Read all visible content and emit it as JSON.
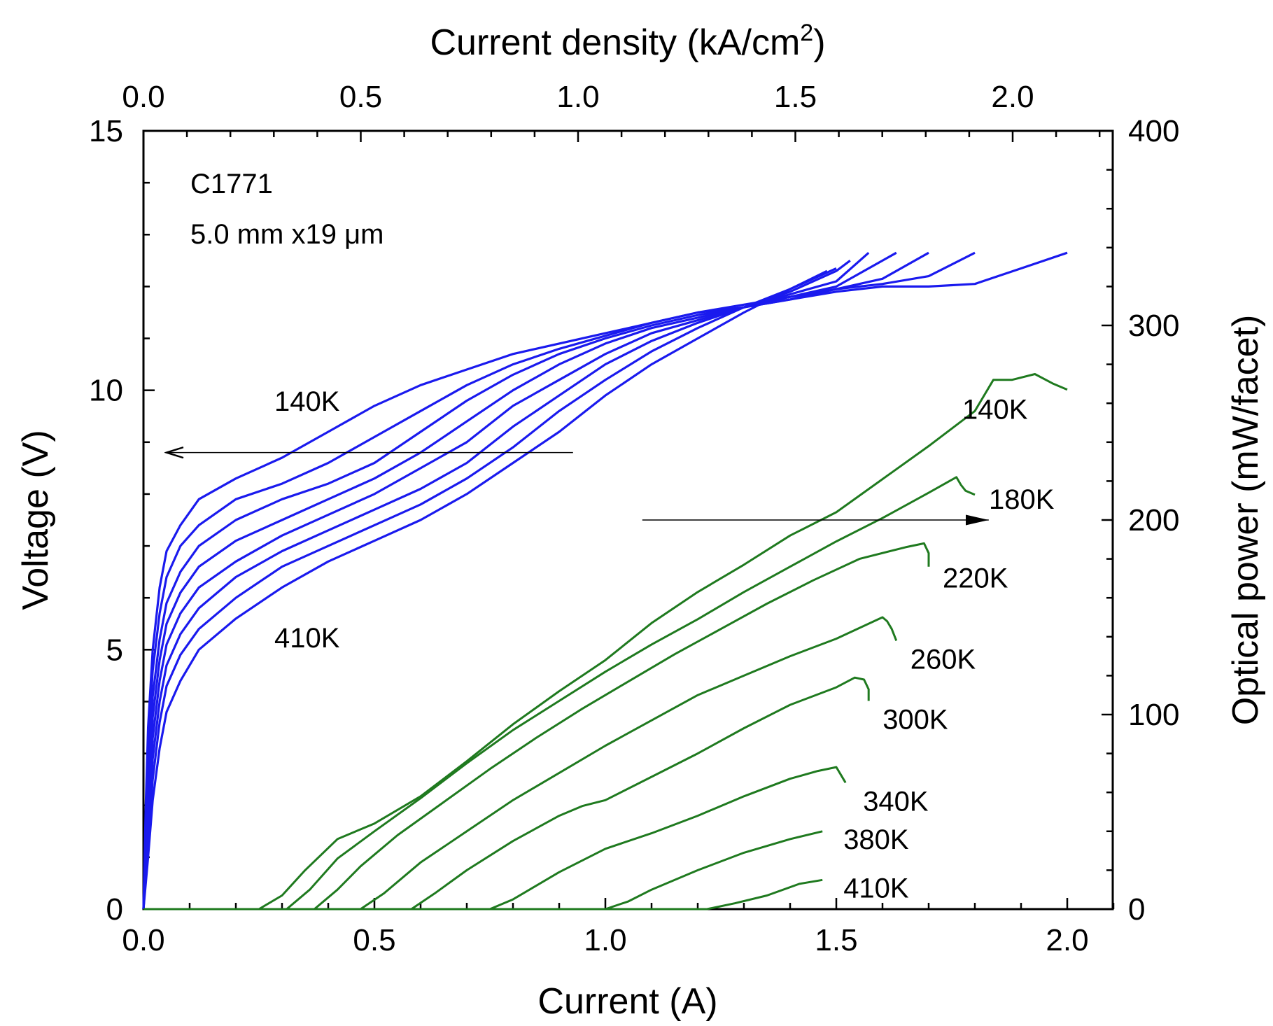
{
  "chart_data": {
    "type": "line",
    "title": "",
    "xlabel": "Current (A)",
    "x2label_base": "Current density (kA/cm",
    "x2label_sup": "2",
    "x2label_tail": ")",
    "ylabel": "Voltage (V)",
    "y2label": "Optical power (mW/facet)",
    "xlim": [
      0,
      2.1
    ],
    "x2lim": [
      0,
      2.2
    ],
    "ylim": [
      0,
      15
    ],
    "y2lim": [
      0,
      400
    ],
    "x_ticks": [
      "0.0",
      "0.5",
      "1.0",
      "1.5",
      "2.0"
    ],
    "x2_ticks": [
      "0.0",
      "0.5",
      "1.0",
      "1.5",
      "2.0"
    ],
    "y_ticks": [
      "0",
      "5",
      "10",
      "15"
    ],
    "y2_ticks": [
      "0",
      "100",
      "200",
      "300",
      "400"
    ],
    "annotations": {
      "device": "C1771",
      "dimensions": "5.0 mm x19 μm",
      "voltage_top_label": "140K",
      "voltage_bottom_label": "410K"
    },
    "arrows": [
      {
        "axis": "left",
        "from_x": 0.93,
        "to_x": 0.05,
        "y": 8.8
      },
      {
        "axis": "right",
        "from_x": 1.08,
        "to_x": 1.83,
        "y2": 200
      }
    ],
    "voltage_color": "#1a1aee",
    "power_color": "#1f7a1f",
    "voltage_series": [
      {
        "name": "140K",
        "x": [
          0,
          0.005,
          0.01,
          0.02,
          0.035,
          0.05,
          0.08,
          0.12,
          0.2,
          0.3,
          0.4,
          0.5,
          0.6,
          0.7,
          0.8,
          0.9,
          1.0,
          1.1,
          1.2,
          1.3,
          1.4,
          1.5,
          1.6,
          1.7,
          1.8,
          1.9,
          2.0
        ],
        "y": [
          0,
          2.0,
          3.5,
          5.0,
          6.2,
          6.9,
          7.4,
          7.9,
          8.3,
          8.7,
          9.2,
          9.7,
          10.1,
          10.4,
          10.7,
          10.9,
          11.1,
          11.3,
          11.5,
          11.6,
          11.75,
          11.9,
          12.0,
          12.0,
          12.05,
          12.35,
          12.65
        ]
      },
      {
        "name": "180K",
        "x": [
          0,
          0.005,
          0.01,
          0.02,
          0.035,
          0.05,
          0.08,
          0.12,
          0.2,
          0.3,
          0.4,
          0.5,
          0.6,
          0.7,
          0.8,
          0.9,
          1.0,
          1.1,
          1.2,
          1.3,
          1.4,
          1.5,
          1.6,
          1.7,
          1.8
        ],
        "y": [
          0,
          1.7,
          3.1,
          4.6,
          5.7,
          6.4,
          7.0,
          7.4,
          7.9,
          8.2,
          8.6,
          9.1,
          9.6,
          10.1,
          10.5,
          10.8,
          11.05,
          11.3,
          11.5,
          11.65,
          11.8,
          11.95,
          12.05,
          12.2,
          12.65
        ]
      },
      {
        "name": "220K",
        "x": [
          0,
          0.01,
          0.02,
          0.035,
          0.05,
          0.08,
          0.12,
          0.2,
          0.3,
          0.4,
          0.5,
          0.6,
          0.7,
          0.8,
          0.9,
          1.0,
          1.1,
          1.2,
          1.3,
          1.4,
          1.5,
          1.6,
          1.7
        ],
        "y": [
          0,
          2.6,
          4.1,
          5.2,
          5.9,
          6.5,
          7.0,
          7.5,
          7.9,
          8.2,
          8.6,
          9.2,
          9.8,
          10.3,
          10.7,
          11.0,
          11.25,
          11.45,
          11.6,
          11.75,
          11.95,
          12.15,
          12.65
        ]
      },
      {
        "name": "260K",
        "x": [
          0,
          0.01,
          0.02,
          0.035,
          0.05,
          0.08,
          0.12,
          0.2,
          0.3,
          0.4,
          0.5,
          0.6,
          0.7,
          0.8,
          0.9,
          1.0,
          1.1,
          1.2,
          1.3,
          1.4,
          1.5,
          1.63
        ],
        "y": [
          0,
          2.2,
          3.7,
          4.8,
          5.5,
          6.1,
          6.6,
          7.1,
          7.5,
          7.9,
          8.3,
          8.8,
          9.4,
          10.0,
          10.5,
          10.9,
          11.2,
          11.4,
          11.6,
          11.8,
          12.0,
          12.65
        ]
      },
      {
        "name": "300K",
        "x": [
          0,
          0.01,
          0.02,
          0.035,
          0.05,
          0.08,
          0.12,
          0.2,
          0.3,
          0.4,
          0.5,
          0.6,
          0.7,
          0.8,
          0.9,
          1.0,
          1.1,
          1.2,
          1.3,
          1.4,
          1.5,
          1.57
        ],
        "y": [
          0,
          1.9,
          3.3,
          4.4,
          5.1,
          5.7,
          6.2,
          6.7,
          7.2,
          7.6,
          8.0,
          8.5,
          9.0,
          9.7,
          10.2,
          10.7,
          11.1,
          11.35,
          11.6,
          11.85,
          12.1,
          12.65
        ]
      },
      {
        "name": "340K",
        "x": [
          0,
          0.01,
          0.02,
          0.035,
          0.05,
          0.08,
          0.12,
          0.2,
          0.3,
          0.4,
          0.5,
          0.6,
          0.7,
          0.8,
          0.9,
          1.0,
          1.1,
          1.2,
          1.3,
          1.4,
          1.5,
          1.53
        ],
        "y": [
          0,
          1.6,
          2.9,
          4.0,
          4.7,
          5.3,
          5.8,
          6.4,
          6.9,
          7.3,
          7.7,
          8.1,
          8.6,
          9.3,
          9.9,
          10.5,
          10.95,
          11.3,
          11.6,
          11.9,
          12.3,
          12.5
        ]
      },
      {
        "name": "380K",
        "x": [
          0,
          0.01,
          0.02,
          0.035,
          0.05,
          0.08,
          0.12,
          0.2,
          0.3,
          0.4,
          0.5,
          0.6,
          0.7,
          0.8,
          0.9,
          1.0,
          1.1,
          1.2,
          1.3,
          1.4,
          1.5
        ],
        "y": [
          0,
          1.3,
          2.5,
          3.6,
          4.3,
          4.9,
          5.4,
          6.0,
          6.6,
          7.0,
          7.4,
          7.8,
          8.3,
          8.9,
          9.6,
          10.2,
          10.75,
          11.2,
          11.6,
          11.95,
          12.35
        ]
      },
      {
        "name": "410K",
        "x": [
          0,
          0.01,
          0.02,
          0.035,
          0.05,
          0.08,
          0.12,
          0.2,
          0.3,
          0.4,
          0.5,
          0.6,
          0.7,
          0.8,
          0.9,
          1.0,
          1.1,
          1.2,
          1.3,
          1.4,
          1.48
        ],
        "y": [
          0,
          1.0,
          2.1,
          3.1,
          3.8,
          4.4,
          5.0,
          5.6,
          6.2,
          6.7,
          7.1,
          7.5,
          8.0,
          8.6,
          9.2,
          9.9,
          10.5,
          11.0,
          11.5,
          11.95,
          12.3
        ]
      }
    ],
    "power_series": [
      {
        "name": "140K",
        "x": [
          0,
          0.25,
          0.3,
          0.35,
          0.42,
          0.5,
          0.6,
          0.7,
          0.8,
          0.9,
          1.0,
          1.1,
          1.2,
          1.3,
          1.4,
          1.5,
          1.6,
          1.7,
          1.8,
          1.84,
          1.88,
          1.93,
          1.97,
          2.0
        ],
        "y2": [
          0,
          0,
          7,
          20,
          36,
          44,
          58,
          76,
          95,
          112,
          128,
          147,
          163,
          177,
          192,
          204,
          221,
          238,
          256,
          272,
          272,
          275,
          270,
          267
        ]
      },
      {
        "name": "180K",
        "x": [
          0,
          0.31,
          0.36,
          0.42,
          0.5,
          0.6,
          0.7,
          0.8,
          0.9,
          1.0,
          1.1,
          1.2,
          1.3,
          1.4,
          1.5,
          1.6,
          1.7,
          1.76,
          1.77,
          1.78,
          1.8
        ],
        "y2": [
          0,
          0,
          10,
          26,
          40,
          57,
          75,
          92,
          107,
          122,
          136,
          149,
          163,
          176,
          189,
          201,
          214,
          222,
          218,
          215,
          213
        ]
      },
      {
        "name": "220K",
        "x": [
          0,
          0.37,
          0.42,
          0.47,
          0.55,
          0.65,
          0.75,
          0.85,
          0.95,
          1.05,
          1.15,
          1.25,
          1.35,
          1.45,
          1.55,
          1.65,
          1.69,
          1.7,
          1.7
        ],
        "y2": [
          0,
          0,
          10,
          22,
          38,
          55,
          72,
          88,
          103,
          117,
          131,
          144,
          157,
          169,
          180,
          186,
          188,
          183,
          176
        ]
      },
      {
        "name": "260K",
        "x": [
          0,
          0.47,
          0.52,
          0.6,
          0.7,
          0.8,
          0.9,
          1.0,
          1.1,
          1.2,
          1.3,
          1.4,
          1.5,
          1.6,
          1.61,
          1.62,
          1.63
        ],
        "y2": [
          0,
          0,
          8,
          24,
          40,
          56,
          70,
          84,
          97,
          110,
          120,
          130,
          139,
          150,
          148,
          144,
          138
        ]
      },
      {
        "name": "300K",
        "x": [
          0,
          0.58,
          0.63,
          0.7,
          0.8,
          0.9,
          0.95,
          1.0,
          1.1,
          1.2,
          1.3,
          1.4,
          1.5,
          1.54,
          1.56,
          1.57,
          1.57
        ],
        "y2": [
          0,
          0,
          8,
          20,
          35,
          48,
          53,
          56,
          68,
          80,
          93,
          105,
          114,
          119,
          118,
          113,
          107
        ]
      },
      {
        "name": "340K",
        "x": [
          0,
          0.75,
          0.8,
          0.9,
          1.0,
          1.1,
          1.2,
          1.3,
          1.4,
          1.46,
          1.5,
          1.51,
          1.52
        ],
        "y2": [
          0,
          0,
          5,
          19,
          31,
          39,
          48,
          58,
          67,
          71,
          73,
          69,
          65
        ]
      },
      {
        "name": "380K",
        "x": [
          0,
          1.0,
          1.05,
          1.1,
          1.2,
          1.3,
          1.4,
          1.47
        ],
        "y2": [
          0,
          0,
          4,
          10,
          20,
          29,
          36,
          40
        ]
      },
      {
        "name": "410K",
        "x": [
          0,
          1.22,
          1.28,
          1.35,
          1.42,
          1.47
        ],
        "y2": [
          0,
          0,
          3,
          7,
          13,
          15
        ]
      }
    ],
    "power_labels": [
      "140K",
      "180K",
      "220K",
      "260K",
      "300K",
      "340K",
      "380K",
      "410K"
    ]
  }
}
